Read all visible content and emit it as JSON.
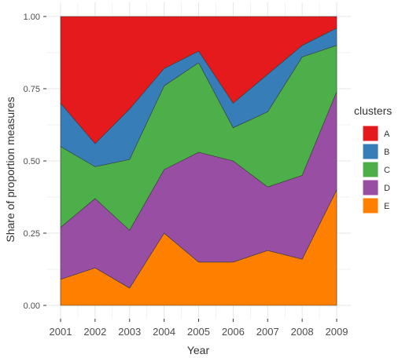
{
  "chart_data": {
    "type": "area",
    "stacked": true,
    "x": [
      2001,
      2002,
      2003,
      2004,
      2005,
      2006,
      2007,
      2008,
      2009
    ],
    "xlabel": "Year",
    "ylabel": "Share of proportion measures",
    "ylim": [
      0,
      1
    ],
    "yticks": [
      "0.00",
      "0.25",
      "0.50",
      "0.75",
      "1.00"
    ],
    "grid": true,
    "legend": {
      "title": "clusters",
      "placement": "right"
    },
    "series": [
      {
        "name": "E",
        "color": "#FF7F00",
        "values": [
          0.09,
          0.13,
          0.06,
          0.25,
          0.15,
          0.15,
          0.19,
          0.16,
          0.4
        ]
      },
      {
        "name": "D",
        "color": "#984EA3",
        "values": [
          0.18,
          0.24,
          0.2,
          0.22,
          0.38,
          0.35,
          0.22,
          0.29,
          0.34
        ]
      },
      {
        "name": "C",
        "color": "#4DAF4A",
        "values": [
          0.28,
          0.11,
          0.245,
          0.29,
          0.31,
          0.115,
          0.26,
          0.41,
          0.16
        ]
      },
      {
        "name": "B",
        "color": "#377EB8",
        "values": [
          0.15,
          0.08,
          0.175,
          0.06,
          0.04,
          0.085,
          0.13,
          0.04,
          0.06
        ]
      },
      {
        "name": "A",
        "color": "#E41A1C",
        "values": [
          0.3,
          0.44,
          0.32,
          0.18,
          0.12,
          0.3,
          0.2,
          0.1,
          0.04
        ]
      }
    ],
    "legend_order": [
      "A",
      "B",
      "C",
      "D",
      "E"
    ]
  },
  "style": {
    "panel_background": "#ffffff",
    "grid_color": "#e5e5e5",
    "area_outline": "#3a3a3a"
  }
}
